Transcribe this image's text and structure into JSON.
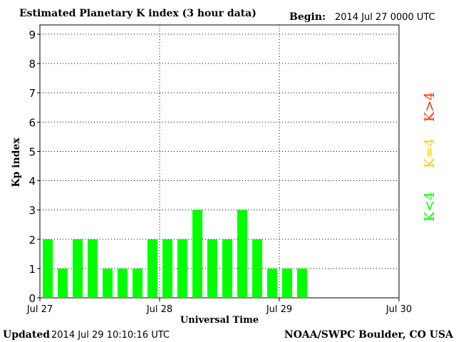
{
  "header": {
    "title": "Estimated Planetary K index (3 hour data)",
    "begin_label": "Begin:",
    "begin_value": "2014 Jul 27 0000 UTC"
  },
  "footer": {
    "updated_label": "Updated",
    "updated_value": "2014 Jul 29 10:10:16 UTC",
    "source": "NOAA/SWPC Boulder, CO USA"
  },
  "legend": {
    "high": "K>4",
    "mid": "K=4",
    "low": "K<4"
  },
  "colors": {
    "low": "#00ff00",
    "mid": "#ffcc00",
    "high": "#ff3300",
    "axis": "#000000",
    "grid": "#000000"
  },
  "chart_data": {
    "type": "bar",
    "title": "Estimated Planetary K index (3 hour data)",
    "xlabel": "Universal Time",
    "ylabel": "Kp index",
    "ylim": [
      0,
      9
    ],
    "yticks": [
      0,
      1,
      2,
      3,
      4,
      5,
      6,
      7,
      8,
      9
    ],
    "xticks": [
      "Jul 27",
      "Jul 28",
      "Jul 29",
      "Jul 30"
    ],
    "x_span_days": 3,
    "bar_interval_hours": 3,
    "grid": "dotted",
    "values": [
      2,
      1,
      2,
      2,
      1,
      1,
      1,
      2,
      2,
      2,
      3,
      2,
      2,
      3,
      2,
      1,
      1,
      1
    ]
  }
}
